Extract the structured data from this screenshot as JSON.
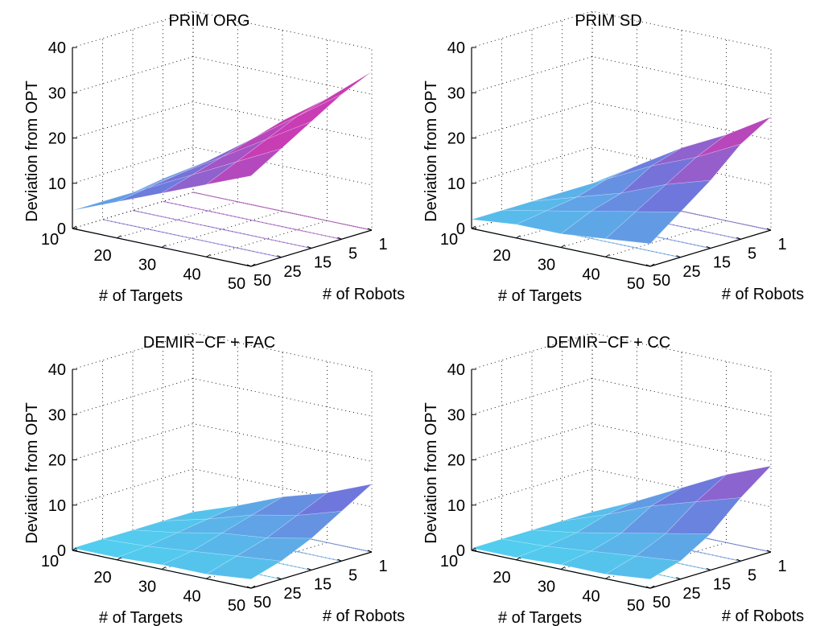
{
  "chart_data": [
    {
      "type": "surface",
      "title": "PRIM ORG",
      "xlabel": "# of Targets",
      "ylabel": "# of Robots",
      "zlabel": "Deviation from OPT",
      "x": [
        10,
        20,
        30,
        40,
        50
      ],
      "y": [
        1,
        5,
        15,
        25,
        50
      ],
      "zlim": [
        0,
        40
      ],
      "zticks": [
        0,
        10,
        20,
        30,
        40
      ],
      "grid": true,
      "z": [
        [
          5,
          12,
          20,
          27,
          35
        ],
        [
          5,
          11,
          18,
          25,
          32
        ],
        [
          4,
          10,
          16,
          22,
          28
        ],
        [
          4,
          9,
          14,
          19,
          24
        ],
        [
          4,
          8,
          12,
          16,
          20
        ]
      ]
    },
    {
      "type": "surface",
      "title": "PRIM SD",
      "xlabel": "# of Targets",
      "ylabel": "# of Robots",
      "zlabel": "Deviation from OPT",
      "x": [
        10,
        20,
        30,
        40,
        50
      ],
      "y": [
        1,
        5,
        15,
        25,
        50
      ],
      "zlim": [
        0,
        40
      ],
      "zticks": [
        0,
        10,
        20,
        30,
        40
      ],
      "grid": true,
      "z": [
        [
          2,
          8,
          14,
          19,
          25
        ],
        [
          2,
          7,
          12,
          16,
          21
        ],
        [
          2,
          5,
          8,
          12,
          15
        ],
        [
          2,
          4,
          6,
          8,
          10
        ],
        [
          2,
          3,
          3,
          4,
          5
        ]
      ]
    },
    {
      "type": "surface",
      "title": "DEMIR−CF + FAC",
      "xlabel": "# of Targets",
      "ylabel": "# of Robots",
      "zlabel": "Deviation from OPT",
      "x": [
        10,
        20,
        30,
        40,
        50
      ],
      "y": [
        1,
        5,
        15,
        25,
        50
      ],
      "zlim": [
        0,
        40
      ],
      "zticks": [
        0,
        10,
        20,
        30,
        40
      ],
      "grid": true,
      "z": [
        [
          0.5,
          4,
          8,
          11,
          15
        ],
        [
          0.5,
          3,
          6,
          8,
          11
        ],
        [
          0.5,
          2,
          4,
          5,
          7
        ],
        [
          0.5,
          1,
          2,
          3,
          4
        ],
        [
          0.5,
          0.5,
          1,
          1,
          2
        ]
      ]
    },
    {
      "type": "surface",
      "title": "DEMIR−CF + CC",
      "xlabel": "# of Targets",
      "ylabel": "# of Robots",
      "zlabel": "Deviation from OPT",
      "x": [
        10,
        20,
        30,
        40,
        50
      ],
      "y": [
        1,
        5,
        15,
        25,
        50
      ],
      "zlim": [
        0,
        40
      ],
      "zticks": [
        0,
        10,
        20,
        30,
        40
      ],
      "grid": true,
      "z": [
        [
          0.5,
          5,
          10,
          15,
          19
        ],
        [
          0.5,
          4,
          8,
          11,
          14
        ],
        [
          0.5,
          2,
          4,
          6,
          8
        ],
        [
          0.5,
          1,
          2,
          3,
          4
        ],
        [
          0.5,
          0.5,
          1,
          1,
          2
        ]
      ]
    }
  ]
}
